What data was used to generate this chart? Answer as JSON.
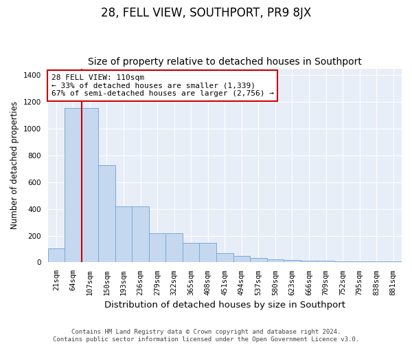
{
  "title": "28, FELL VIEW, SOUTHPORT, PR9 8JX",
  "subtitle": "Size of property relative to detached houses in Southport",
  "xlabel": "Distribution of detached houses by size in Southport",
  "ylabel": "Number of detached properties",
  "footer_line1": "Contains HM Land Registry data © Crown copyright and database right 2024.",
  "footer_line2": "Contains public sector information licensed under the Open Government Licence v3.0.",
  "categories": [
    "21sqm",
    "64sqm",
    "107sqm",
    "150sqm",
    "193sqm",
    "236sqm",
    "279sqm",
    "322sqm",
    "365sqm",
    "408sqm",
    "451sqm",
    "494sqm",
    "537sqm",
    "580sqm",
    "623sqm",
    "666sqm",
    "709sqm",
    "752sqm",
    "795sqm",
    "838sqm",
    "881sqm"
  ],
  "values": [
    105,
    1155,
    1155,
    730,
    420,
    420,
    220,
    220,
    145,
    145,
    70,
    50,
    35,
    25,
    20,
    13,
    13,
    10,
    10,
    10,
    10
  ],
  "bar_color": "#c5d8f0",
  "bar_edge_color": "#7aaad4",
  "red_line_x": 1.5,
  "annotation_line1": "28 FELL VIEW: 110sqm",
  "annotation_line2": "← 33% of detached houses are smaller (1,339)",
  "annotation_line3": "67% of semi-detached houses are larger (2,756) →",
  "annotation_box_facecolor": "#ffffff",
  "annotation_box_edgecolor": "#cc0000",
  "red_line_color": "#cc0000",
  "ylim": [
    0,
    1450
  ],
  "yticks": [
    0,
    200,
    400,
    600,
    800,
    1000,
    1200,
    1400
  ],
  "fig_bg_color": "#ffffff",
  "plot_bg_color": "#e8eef8",
  "title_fontsize": 12,
  "subtitle_fontsize": 10,
  "tick_fontsize": 7.5,
  "ylabel_fontsize": 8.5,
  "xlabel_fontsize": 9.5,
  "footer_fontsize": 6.5
}
